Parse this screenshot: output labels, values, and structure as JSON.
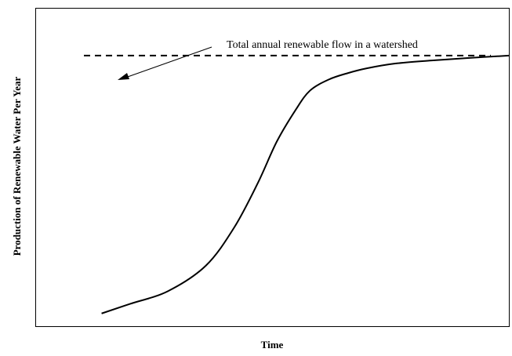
{
  "chart_data": {
    "type": "line",
    "title": "",
    "xlabel": "Time",
    "ylabel": "Production of Renewable Water Per Year",
    "xlim": [
      0,
      100
    ],
    "ylim": [
      0,
      100
    ],
    "grid": false,
    "ticks": false,
    "annotation": "Total annual renewable flow in a watershed",
    "reference_line": {
      "label": "Total annual renewable flow in a watershed",
      "y": 85,
      "style": "dashed"
    },
    "series": [
      {
        "x": [
          14,
          20,
          28,
          36,
          42,
          47,
          51,
          55,
          58,
          62,
          66,
          70,
          76,
          84,
          92,
          100
        ],
        "y": [
          4,
          7,
          11,
          19,
          31,
          45,
          58,
          68,
          74,
          77.5,
          79.5,
          81,
          82.5,
          83.5,
          84.3,
          85
        ]
      }
    ]
  }
}
